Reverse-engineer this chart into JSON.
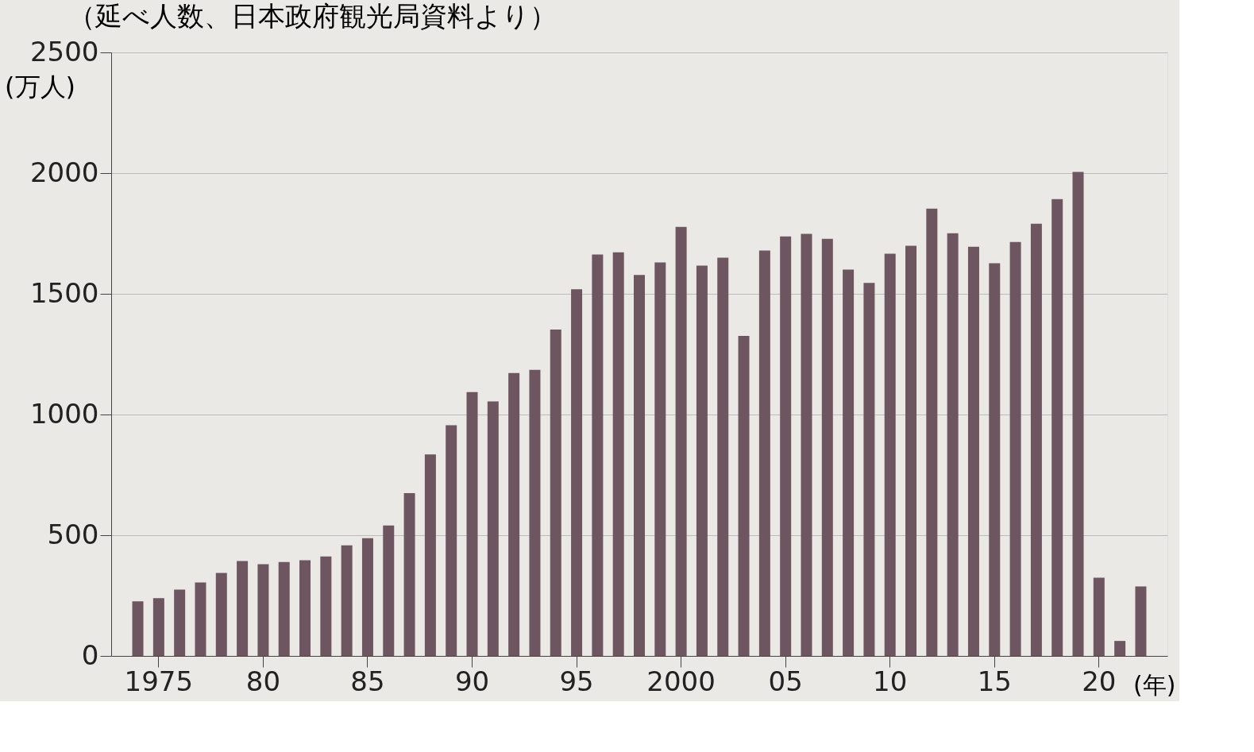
{
  "chart_data": {
    "type": "bar",
    "subtitle": "（延べ人数、日本政府観光局資料より）",
    "ylabel": "(万人)",
    "xlabel": "(年)",
    "categories": [
      null,
      "1975",
      null,
      null,
      null,
      null,
      "80",
      null,
      null,
      null,
      null,
      "85",
      null,
      null,
      null,
      null,
      "90",
      null,
      null,
      null,
      null,
      "95",
      null,
      null,
      null,
      null,
      "2000",
      null,
      null,
      null,
      null,
      "05",
      null,
      null,
      null,
      null,
      "10",
      null,
      null,
      null,
      null,
      "15",
      null,
      null,
      null,
      null,
      "20",
      null,
      null
    ],
    "values": [
      226,
      239,
      275,
      304,
      344,
      393,
      380,
      389,
      396,
      412,
      458,
      488,
      540,
      674,
      835,
      956,
      1093,
      1054,
      1172,
      1185,
      1352,
      1519,
      1663,
      1672,
      1578,
      1630,
      1777,
      1617,
      1650,
      1326,
      1679,
      1738,
      1748,
      1728,
      1600,
      1545,
      1666,
      1699,
      1853,
      1751,
      1695,
      1627,
      1715,
      1790,
      1892,
      2005,
      324,
      62,
      288
    ],
    "color": "#6e5660",
    "ylim": [
      0,
      2500
    ],
    "yticks": [
      0,
      500,
      1000,
      1500,
      2000,
      2500
    ],
    "grid": "y"
  }
}
